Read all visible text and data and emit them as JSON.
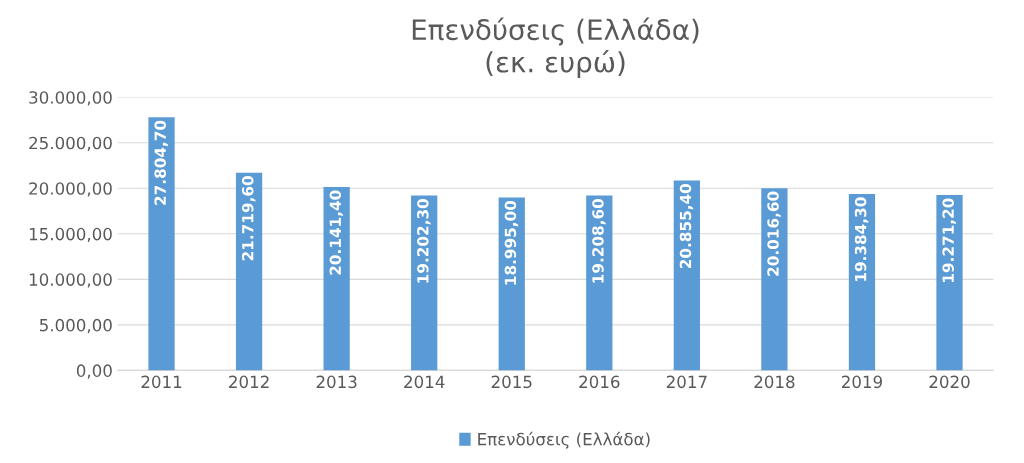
{
  "chart_data": {
    "type": "bar",
    "title": "Επενδύσεις (Ελλάδα)\n(εκ. ευρώ)",
    "categories": [
      "2011",
      "2012",
      "2013",
      "2014",
      "2015",
      "2016",
      "2017",
      "2018",
      "2019",
      "2020"
    ],
    "series": [
      {
        "name": "Επενδύσεις (Ελλάδα)",
        "color": "#5b9bd5",
        "values": [
          27804.7,
          21719.6,
          20141.4,
          19202.3,
          18995.0,
          19208.6,
          20855.4,
          20016.6,
          19384.3,
          19271.2
        ],
        "value_labels": [
          "27.804,70",
          "21.719,60",
          "20.141,40",
          "19.202,30",
          "18.995,00",
          "19.208,60",
          "20.855,40",
          "20.016,60",
          "19.384,30",
          "19.271,20"
        ]
      }
    ],
    "ylim": [
      0,
      30000
    ],
    "yticks": [
      {
        "value": 0,
        "label": "0,00"
      },
      {
        "value": 5000,
        "label": "5.000,00"
      },
      {
        "value": 10000,
        "label": "10.000,00"
      },
      {
        "value": 15000,
        "label": "15.000,00"
      },
      {
        "value": 20000,
        "label": "20.000,00"
      },
      {
        "value": 25000,
        "label": "25.000,00"
      },
      {
        "value": 30000,
        "label": "30.000,00"
      }
    ],
    "grid": "y",
    "legend": "bottom"
  }
}
